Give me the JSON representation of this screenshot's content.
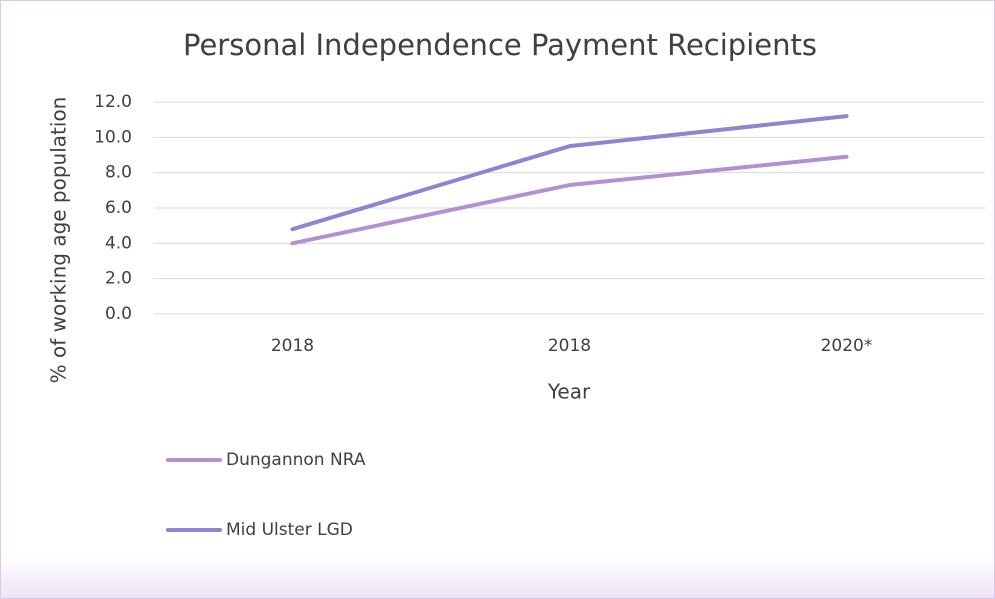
{
  "chart_data": {
    "type": "line",
    "title": "Personal Independence Payment Recipients",
    "x_label": "Year",
    "y_label": "% of working age  population",
    "categories": [
      "2018",
      "2018",
      "2020*"
    ],
    "series": [
      {
        "name": "Dungannon NRA",
        "color": "#b48fd2",
        "values": [
          4.0,
          7.3,
          8.9
        ]
      },
      {
        "name": "Mid Ulster LGD",
        "color": "#8a86d2",
        "values": [
          4.8,
          9.5,
          11.2
        ]
      }
    ],
    "ylim": [
      0,
      12
    ],
    "yticks": [
      {
        "value": 0,
        "label": "0.0"
      },
      {
        "value": 2,
        "label": "2.0"
      },
      {
        "value": 4,
        "label": "4.0"
      },
      {
        "value": 6,
        "label": "6.0"
      },
      {
        "value": 8,
        "label": "8.0"
      },
      {
        "value": 10,
        "label": "10.0"
      },
      {
        "value": 12,
        "label": "12.0"
      }
    ],
    "grid": true,
    "legend": "bottom"
  }
}
